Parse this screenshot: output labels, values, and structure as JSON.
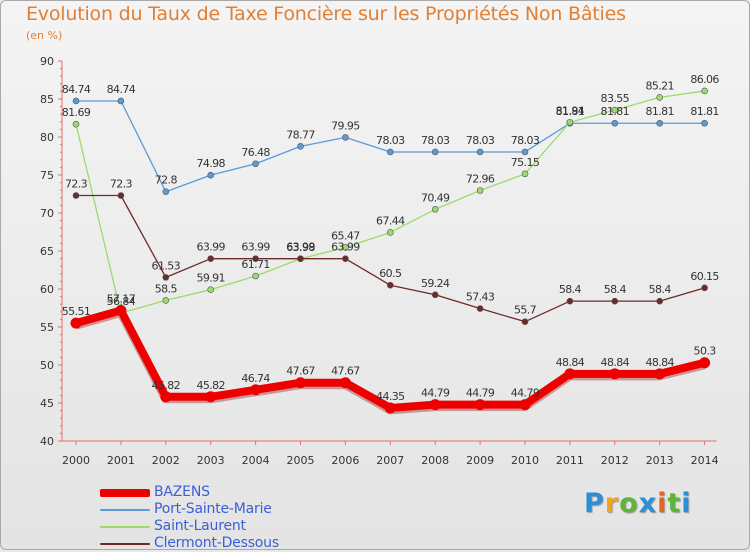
{
  "header": {
    "title": "Evolution du Taux de Taxe Foncière sur les Propriétés Non Bâties",
    "unit": "(en %)"
  },
  "logo": {
    "text": "Proxiti",
    "colors": [
      "#2c8fd6",
      "#f0a51f",
      "#5fb43a",
      "#2c8fd6",
      "#e8641e",
      "#5fb43a",
      "#2c8fd6"
    ]
  },
  "chart_data": {
    "type": "line",
    "title": "Evolution du Taux de Taxe Foncière sur les Propriétés Non Bâties",
    "ylabel": "(en %)",
    "xlabel": "",
    "ylim": [
      40,
      90
    ],
    "yticks": [
      "40",
      "45",
      "50",
      "55",
      "60",
      "65",
      "70",
      "75",
      "80",
      "85",
      "90"
    ],
    "grid": false,
    "legend_position": "bottom-left",
    "categories": [
      "2000",
      "2001",
      "2002",
      "2003",
      "2004",
      "2005",
      "2006",
      "2007",
      "2008",
      "2009",
      "2010",
      "2011",
      "2012",
      "2013",
      "2014"
    ],
    "series": [
      {
        "name": "BAZENS",
        "color": "#ee0000",
        "values": [
          55.51,
          57.17,
          45.82,
          45.82,
          46.74,
          47.67,
          47.67,
          44.35,
          44.79,
          44.79,
          44.79,
          48.84,
          48.84,
          48.84,
          50.3
        ],
        "labels": [
          "55.51",
          "57.17",
          "45.82",
          "45.82",
          "46.74",
          "47.67",
          "47.67",
          "44.35",
          "44.79",
          "44.79",
          "44.79",
          "48.84",
          "48.84",
          "48.84",
          "50.3"
        ]
      },
      {
        "name": "Port-Sainte-Marie",
        "color": "#5b9bd5",
        "values": [
          84.74,
          84.74,
          72.8,
          74.98,
          76.48,
          78.77,
          79.95,
          78.03,
          78.03,
          78.03,
          78.03,
          81.81,
          81.81,
          81.81,
          81.81
        ],
        "labels": [
          "84.74",
          "84.74",
          "72.8",
          "74.98",
          "76.48",
          "78.77",
          "79.95",
          "78.03",
          "78.03",
          "78.03",
          "78.03",
          "81.81",
          "81.81",
          "81.81",
          "81.81"
        ]
      },
      {
        "name": "Saint-Laurent",
        "color": "#9bdb6b",
        "values": [
          81.69,
          56.84,
          58.5,
          59.91,
          61.71,
          63.98,
          65.47,
          67.44,
          70.49,
          72.96,
          75.15,
          81.94,
          83.55,
          85.21,
          86.06
        ],
        "labels": [
          "81.69",
          "56.84",
          "58.5",
          "59.91",
          "61.71",
          "63.98",
          "65.47",
          "67.44",
          "70.49",
          "72.96",
          "75.15",
          "81.94",
          "83.55",
          "85.21",
          "86.06"
        ]
      },
      {
        "name": "Clermont-Dessous",
        "color": "#6e2a2a",
        "values": [
          72.3,
          72.3,
          61.53,
          63.99,
          63.99,
          63.99,
          63.99,
          60.5,
          59.24,
          57.43,
          55.7,
          58.4,
          58.4,
          58.4,
          60.15
        ],
        "labels": [
          "72.3",
          "72.3",
          "61.53",
          "63.99",
          "63.99",
          "63.99",
          "63.99",
          "60.5",
          "59.24",
          "57.43",
          "55.7",
          "58.4",
          "58.4",
          "58.4",
          "60.15"
        ]
      }
    ]
  }
}
